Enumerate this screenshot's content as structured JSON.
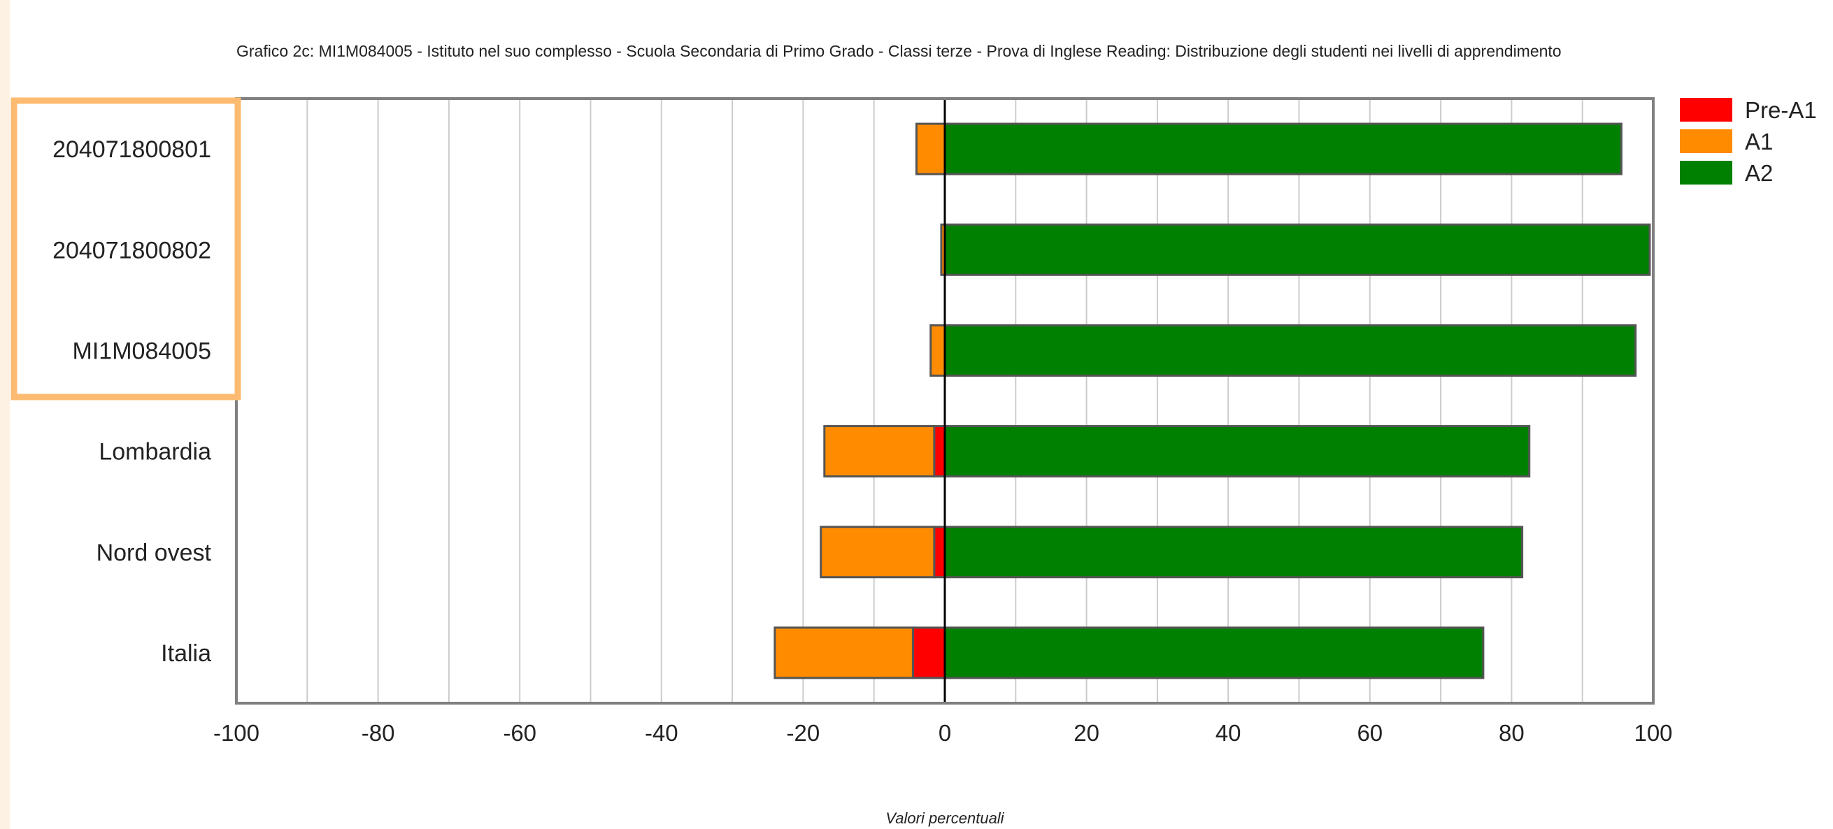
{
  "chart_data": {
    "type": "bar",
    "orientation": "horizontal",
    "stacked": "diverging",
    "title": "Grafico 2c: MI1M084005 - Istituto nel suo complesso - Scuola Secondaria di Primo Grado - Classi terze - Prova di Inglese Reading: Distribuzione degli studenti nei livelli di apprendimento",
    "xlabel": "Valori percentuali",
    "ylabel": "",
    "xlim": [
      -100,
      100
    ],
    "x_ticks": [
      -100,
      -80,
      -60,
      -40,
      -20,
      0,
      20,
      40,
      60,
      80,
      100
    ],
    "grid": "vertical",
    "legend_position": "top-right",
    "categories": [
      "204071800801",
      "204071800802",
      "MI1M084005",
      "Lombardia",
      "Nord ovest",
      "Italia"
    ],
    "highlighted_categories": [
      "204071800801",
      "204071800802",
      "MI1M084005"
    ],
    "series": [
      {
        "name": "Pre-A1",
        "side": "negative",
        "color": "#ff0000",
        "values": [
          0,
          0,
          0,
          1.5,
          1.5,
          4.5
        ]
      },
      {
        "name": "A1",
        "side": "negative",
        "color": "#ff8c00",
        "values": [
          4,
          0.5,
          2,
          15.5,
          16,
          19.5
        ]
      },
      {
        "name": "A2",
        "side": "positive",
        "color": "#008000",
        "values": [
          95.5,
          99.5,
          97.5,
          82.5,
          81.5,
          76
        ]
      }
    ]
  },
  "colors": {
    "highlight_box": "#fdbb72",
    "grid": "#cccccc",
    "frame": "#808080",
    "bar_border": "#555555"
  }
}
